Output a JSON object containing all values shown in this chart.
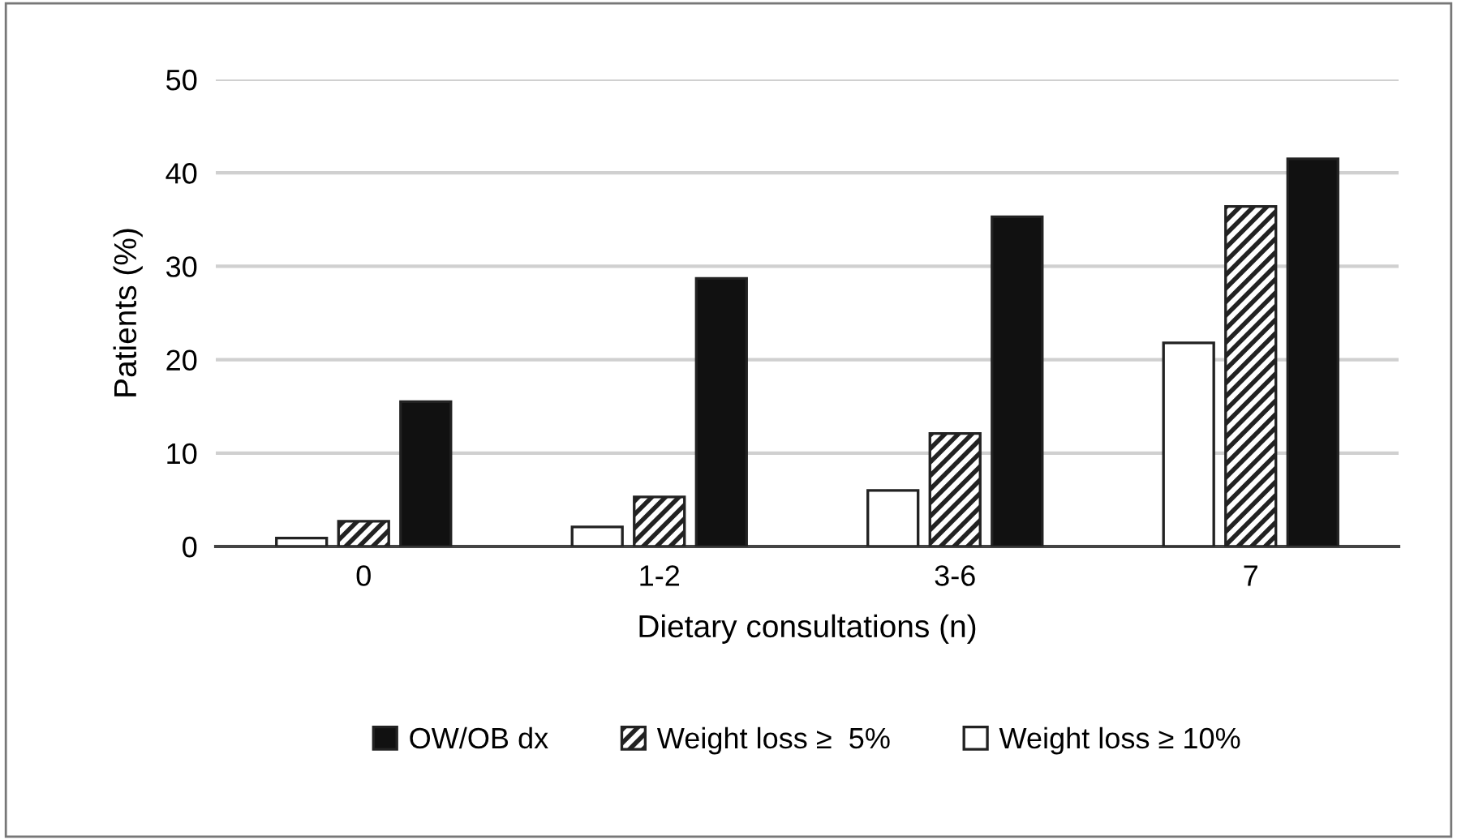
{
  "chart_data": {
    "type": "bar",
    "xlabel": "Dietary consultations (n)",
    "ylabel": "Patients (%)",
    "categories": [
      "0",
      "1-2",
      "3-6",
      "7"
    ],
    "series": [
      {
        "name": "Weight loss ≥ 10%",
        "color": "#ffffff",
        "values": [
          0.9,
          2.1,
          6.0,
          21.8
        ]
      },
      {
        "name": "Weight loss ≥  5%",
        "color": "#222222",
        "values": [
          2.7,
          5.3,
          12.1,
          36.4
        ]
      },
      {
        "name": "OW/OB dx",
        "color": "#111111",
        "values": [
          15.5,
          28.7,
          35.3,
          41.5
        ]
      }
    ],
    "ylim": [
      0,
      50
    ],
    "yticks": [
      0,
      10,
      20,
      30,
      40,
      50
    ],
    "grid": "y",
    "legend": "bottom"
  }
}
